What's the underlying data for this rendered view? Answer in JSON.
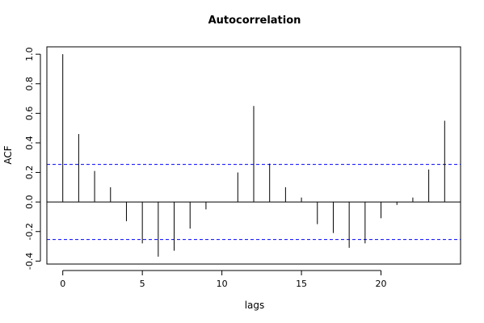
{
  "chart_data": {
    "type": "bar",
    "subtype": "acf-stem",
    "title": "Autocorrelation",
    "xlabel": "lags",
    "ylabel": "ACF",
    "xlim": [
      -1,
      25
    ],
    "ylim": [
      -0.42,
      1.05
    ],
    "x_ticks": [
      0,
      5,
      10,
      15,
      20
    ],
    "x_tick_labels": [
      "0",
      "5",
      "10",
      "15",
      "20"
    ],
    "y_ticks": [
      -0.4,
      -0.2,
      0.0,
      0.2,
      0.4,
      0.6,
      0.8,
      1.0
    ],
    "y_tick_labels": [
      "-0.4",
      "-0.2",
      "0.0",
      "0.2",
      "0.4",
      "0.6",
      "0.8",
      "1.0"
    ],
    "lags": [
      0,
      1,
      2,
      3,
      4,
      5,
      6,
      7,
      8,
      9,
      10,
      11,
      12,
      13,
      14,
      15,
      16,
      17,
      18,
      19,
      20,
      21,
      22,
      23,
      24
    ],
    "acf": [
      1.0,
      0.46,
      0.21,
      0.1,
      -0.13,
      -0.28,
      -0.37,
      -0.33,
      -0.18,
      -0.05,
      0.0,
      0.2,
      0.65,
      0.26,
      0.1,
      0.03,
      -0.15,
      -0.21,
      -0.31,
      -0.28,
      -0.11,
      -0.02,
      0.03,
      0.22,
      0.55
    ],
    "confidence_band": 0.254,
    "zero_line": 0,
    "colors": {
      "stems": "#000000",
      "confidence_band": "#0000ff",
      "zero_line": "#000000"
    },
    "grid": false,
    "legend": "none"
  }
}
